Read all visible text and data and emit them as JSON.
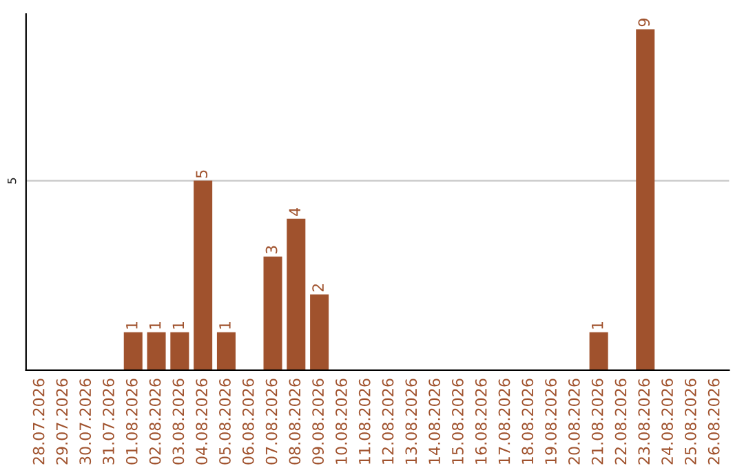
{
  "chart_data": {
    "type": "bar",
    "categories": [
      "28.07.2026",
      "29.07.2026",
      "30.07.2026",
      "31.07.2026",
      "01.08.2026",
      "02.08.2026",
      "03.08.2026",
      "04.08.2026",
      "05.08.2026",
      "06.08.2026",
      "07.08.2026",
      "08.08.2026",
      "09.08.2026",
      "10.08.2026",
      "11.08.2026",
      "12.08.2026",
      "13.08.2026",
      "14.08.2026",
      "15.08.2026",
      "16.08.2026",
      "17.08.2026",
      "18.08.2026",
      "19.08.2026",
      "20.08.2026",
      "21.08.2026",
      "22.08.2026",
      "23.08.2026",
      "24.08.2026",
      "25.08.2026",
      "26.08.2026"
    ],
    "values": [
      0,
      0,
      0,
      0,
      1,
      1,
      1,
      5,
      1,
      0,
      3,
      4,
      2,
      0,
      0,
      0,
      0,
      0,
      0,
      0,
      0,
      0,
      0,
      0,
      1,
      0,
      9,
      0,
      0,
      0
    ],
    "value_labels": [
      null,
      null,
      null,
      null,
      "1",
      "1",
      "1",
      "5",
      "1",
      null,
      "3",
      "4",
      "2",
      null,
      null,
      null,
      null,
      null,
      null,
      null,
      null,
      null,
      null,
      null,
      "1",
      null,
      "9",
      null,
      null,
      null
    ],
    "color": "#a0522d",
    "ylim": [
      0,
      9.4
    ],
    "yticks": [
      5
    ],
    "grid": "y"
  }
}
